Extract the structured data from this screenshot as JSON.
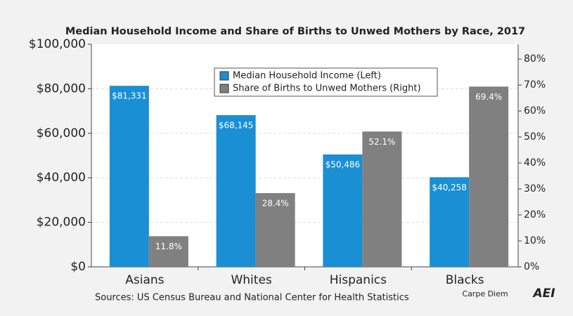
{
  "chart_data": {
    "type": "bar",
    "title": "Median Household Income and Share of Births to Unwed Mothers by Race, 2017",
    "categories": [
      "Asians",
      "Whites",
      "Hispanics",
      "Blacks"
    ],
    "series": [
      {
        "name": "Median Household Income (Left)",
        "color": "#1a8fd4",
        "axis": "y",
        "values": [
          81331,
          68145,
          50486,
          40258
        ],
        "value_labels": [
          "$81,331",
          "$68,145",
          "$50,486",
          "$40,258"
        ]
      },
      {
        "name": "Share of Births to Unwed Mothers (Right)",
        "color": "#808080",
        "axis": "y2",
        "values": [
          11.8,
          28.4,
          52.1,
          69.4
        ],
        "value_labels": [
          "11.8%",
          "28.4%",
          "52.1%",
          "69.4%"
        ]
      }
    ],
    "ylim": [
      0,
      100000
    ],
    "yticks": [
      {
        "value": 0,
        "label": "$0"
      },
      {
        "value": 20000,
        "label": "$20,000"
      },
      {
        "value": 40000,
        "label": "$40,000"
      },
      {
        "value": 60000,
        "label": "$60,000"
      },
      {
        "value": 80000,
        "label": "$80,000"
      },
      {
        "value": 100000,
        "label": "$100,000"
      }
    ],
    "y2lim": [
      0,
      85.7
    ],
    "y2ticks": [
      {
        "value": 0,
        "label": "0%"
      },
      {
        "value": 10,
        "label": "10%"
      },
      {
        "value": 20,
        "label": "20%"
      },
      {
        "value": 30,
        "label": "30%"
      },
      {
        "value": 40,
        "label": "40%"
      },
      {
        "value": 50,
        "label": "50%"
      },
      {
        "value": 60,
        "label": "60%"
      },
      {
        "value": 70,
        "label": "70%"
      },
      {
        "value": 80,
        "label": "80%"
      }
    ],
    "grid": true,
    "source": "Sources: US Census Bureau and National Center for Health Statistics",
    "branding": "Carpe Diem",
    "logo": "AEI"
  }
}
